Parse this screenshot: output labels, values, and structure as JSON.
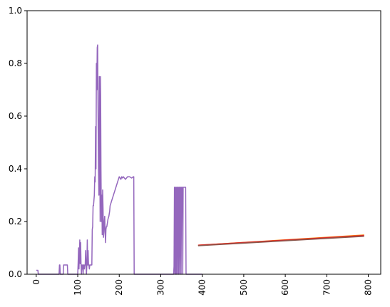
{
  "chart_data": {
    "type": "line",
    "title": "",
    "xlabel": "",
    "ylabel": "",
    "xlim": [
      -22,
      830
    ],
    "ylim": [
      0,
      1
    ],
    "x_ticks": [
      "0",
      "100",
      "200",
      "300",
      "400",
      "500",
      "600",
      "700",
      "800"
    ],
    "y_ticks": [
      "0.0",
      "0.2",
      "0.4",
      "0.6",
      "0.8",
      "1.0"
    ],
    "x_tick_values": [
      0,
      100,
      200,
      300,
      400,
      500,
      600,
      700,
      800
    ],
    "y_tick_values": [
      0,
      0.2,
      0.4,
      0.6,
      0.8,
      1.0
    ],
    "x_tick_rotation": "vertical",
    "grid": false,
    "legend": "none",
    "series": [
      {
        "color": "#9467bd",
        "x": [
          0,
          4,
          5,
          10,
          55,
          56,
          57,
          58,
          65,
          66,
          75,
          76,
          100,
          101,
          102,
          103,
          104,
          105,
          106,
          107,
          108,
          109,
          110,
          111,
          112,
          113,
          114,
          115,
          116,
          117,
          118,
          119,
          120,
          121,
          122,
          123,
          124,
          125,
          126,
          127,
          128,
          129,
          130,
          131,
          132,
          133,
          134,
          135,
          136,
          137,
          138,
          139,
          140,
          141,
          142,
          143,
          144,
          145,
          146,
          147,
          148,
          149,
          150,
          151,
          152,
          153,
          154,
          155,
          156,
          157,
          158,
          159,
          160,
          161,
          162,
          163,
          164,
          165,
          166,
          167,
          168,
          169,
          170,
          171,
          172,
          173,
          175,
          176,
          177,
          178,
          180,
          182,
          184,
          186,
          188,
          190,
          192,
          194,
          196,
          198,
          200,
          202,
          204,
          206,
          208,
          210,
          215,
          220,
          225,
          230,
          234,
          235,
          236,
          237,
          240,
          260,
          280,
          300,
          320,
          330,
          331,
          332,
          333,
          334,
          335,
          336,
          337,
          338,
          339,
          340,
          341,
          342,
          343,
          344,
          345,
          346,
          347,
          348,
          349,
          350,
          351,
          352,
          353,
          354,
          355,
          356,
          357,
          358,
          359,
          360,
          361,
          380,
          400
        ],
        "y": [
          0.015,
          0.015,
          0,
          0,
          0,
          0.035,
          0.035,
          0,
          0,
          0.035,
          0.035,
          0,
          0,
          0.045,
          0.1,
          0.02,
          0.08,
          0.13,
          0.04,
          0.12,
          0.035,
          0,
          0.035,
          0.02,
          0.035,
          0,
          0.035,
          0.035,
          0.02,
          0.035,
          0.035,
          0.09,
          0.035,
          0,
          0.035,
          0.13,
          0.035,
          0.09,
          0.035,
          0.035,
          0.02,
          0.035,
          0.035,
          0.035,
          0.035,
          0.035,
          0.035,
          0.17,
          0.18,
          0.26,
          0.26,
          0.28,
          0.3,
          0.37,
          0.35,
          0.56,
          0.4,
          0.8,
          0.7,
          0.86,
          0.87,
          0.6,
          0.4,
          0.3,
          0.75,
          0.5,
          0.2,
          0.75,
          0.4,
          0.2,
          0.3,
          0.15,
          0.32,
          0.25,
          0.14,
          0.16,
          0.2,
          0.22,
          0.16,
          0.12,
          0.17,
          0.18,
          0.18,
          0.19,
          0.2,
          0.21,
          0.22,
          0.23,
          0.24,
          0.26,
          0.27,
          0.28,
          0.29,
          0.3,
          0.31,
          0.32,
          0.33,
          0.34,
          0.35,
          0.36,
          0.37,
          0.365,
          0.36,
          0.37,
          0.365,
          0.37,
          0.36,
          0.37,
          0.37,
          0.365,
          0.37,
          0.37,
          0,
          0,
          0,
          0,
          0,
          0,
          0,
          0,
          0,
          0.03,
          0.33,
          0,
          0.33,
          0,
          0.33,
          0,
          0.33,
          0.33,
          0,
          0.33,
          0,
          0.33,
          0.33,
          0,
          0.33,
          0.33,
          0,
          0.33,
          0.33,
          0.33,
          0,
          0.33,
          0.33,
          0.33,
          0.33,
          0.33,
          0.33,
          0.33,
          0,
          0,
          0
        ]
      },
      {
        "color": "#ff7f0e",
        "x": [
          390,
          790
        ],
        "y": [
          0.11,
          0.149
        ]
      },
      {
        "color": "#d62728",
        "x": [
          390,
          790
        ],
        "y": [
          0.11,
          0.147
        ]
      },
      {
        "color": "#8c564b",
        "x": [
          390,
          790
        ],
        "y": [
          0.108,
          0.144
        ]
      }
    ]
  }
}
